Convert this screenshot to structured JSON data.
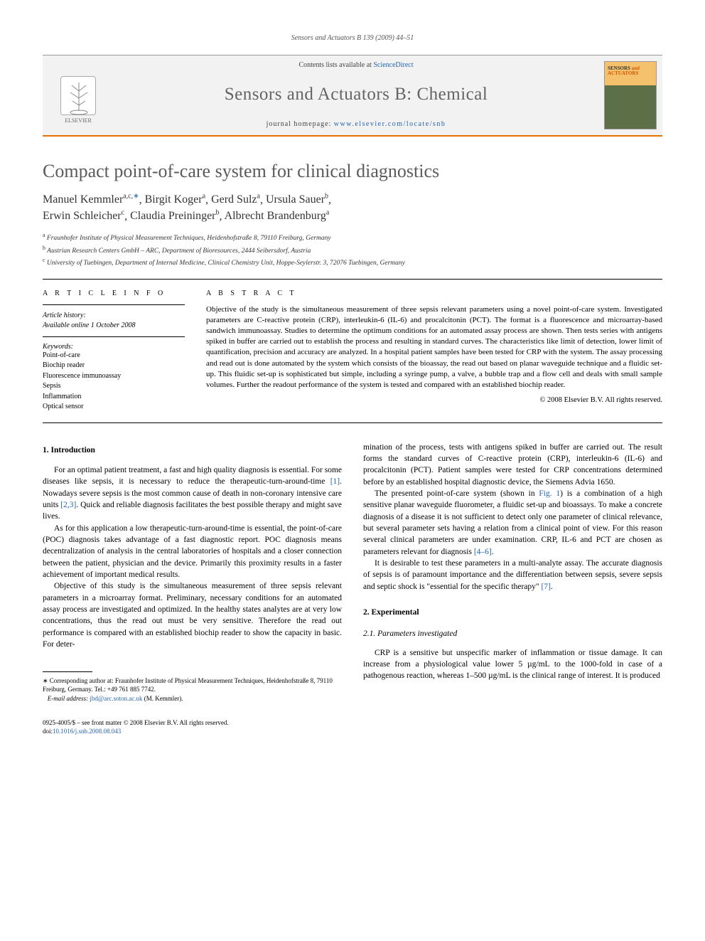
{
  "running_header": "Sensors and Actuators B 139 (2009) 44–51",
  "masthead": {
    "publisher_name": "ELSEVIER",
    "contents_prefix": "Contents lists available at ",
    "contents_link": "ScienceDirect",
    "journal_name": "Sensors and Actuators B: Chemical",
    "homepage_prefix": "journal homepage: ",
    "homepage_url": "www.elsevier.com/locate/snb",
    "cover_line1": "SENSORS",
    "cover_line_and": "and",
    "cover_line2": "ACTUATORS"
  },
  "title": "Compact point-of-care system for clinical diagnostics",
  "authors_html": [
    {
      "name": "Manuel Kemmler",
      "sup": "a,c,",
      "star": true
    },
    {
      "name": "Birgit Koger",
      "sup": "a"
    },
    {
      "name": "Gerd Sulz",
      "sup": "a"
    },
    {
      "name": "Ursula Sauer",
      "sup": "b"
    },
    {
      "name": "Erwin Schleicher",
      "sup": "c"
    },
    {
      "name": "Claudia Preininger",
      "sup": "b"
    },
    {
      "name": "Albrecht Brandenburg",
      "sup": "a"
    }
  ],
  "affiliations": [
    {
      "key": "a",
      "text": "Fraunhofer Institute of Physical Measurement Techniques, Heidenhofstraße 8, 79110 Freiburg, Germany"
    },
    {
      "key": "b",
      "text": "Austrian Research Centers GmbH – ARC, Department of Bioresources, 2444 Seibersdorf, Austria"
    },
    {
      "key": "c",
      "text": "University of Tuebingen, Department of Internal Medicine, Clinical Chemistry Unit, Hoppe-Seylerstr. 3, 72076 Tuebingen, Germany"
    }
  ],
  "info": {
    "heading": "A R T I C L E   I N F O",
    "history_label": "Article history:",
    "history_value": "Available online 1 October 2008",
    "keywords_label": "Keywords:",
    "keywords": [
      "Point-of-care",
      "Biochip reader",
      "Fluorescence immunoassay",
      "Sepsis",
      "Inflammation",
      "Optical sensor"
    ]
  },
  "abstract": {
    "heading": "A B S T R A C T",
    "text": "Objective of the study is the simultaneous measurement of three sepsis relevant parameters using a novel point-of-care system. Investigated parameters are C-reactive protein (CRP), interleukin-6 (IL-6) and procalcitonin (PCT). The format is a fluorescence and microarray-based sandwich immunoassay. Studies to determine the optimum conditions for an automated assay process are shown. Then tests series with antigens spiked in buffer are carried out to establish the process and resulting in standard curves. The characteristics like limit of detection, lower limit of quantification, precision and accuracy are analyzed. In a hospital patient samples have been tested for CRP with the system. The assay processing and read out is done automated by the system which consists of the bioassay, the read out based on planar waveguide technique and a fluidic set-up. This fluidic set-up is sophisticated but simple, including a syringe pump, a valve, a bubble trap and a flow cell and deals with small sample volumes. Further the readout performance of the system is tested and compared with an established biochip reader.",
    "copyright": "© 2008 Elsevier B.V. All rights reserved."
  },
  "sections": {
    "intro_heading": "1.  Introduction",
    "intro_p1": "For an optimal patient treatment, a fast and high quality diagnosis is essential. For some diseases like sepsis, it is necessary to reduce the therapeutic-turn-around-time [1]. Nowadays severe sepsis is the most common cause of death in non-coronary intensive care units [2,3]. Quick and reliable diagnosis facilitates the best possible therapy and might save lives.",
    "intro_p2": "As for this application a low therapeutic-turn-around-time is essential, the point-of-care (POC) diagnosis takes advantage of a fast diagnostic report. POC diagnosis means decentralization of analysis in the central laboratories of hospitals and a closer connection between the patient, physician and the device. Primarily this proximity results in a faster achievement of important medical results.",
    "intro_p3": "Objective of this study is the simultaneous measurement of three sepsis relevant parameters in a microarray format. Preliminary, necessary conditions for an automated assay process are investigated and optimized. In the healthy states analytes are at very low concentrations, thus the read out must be very sensitive. Therefore the read out performance is compared with an established biochip reader to show the capacity in basic. For deter-",
    "intro_p3b": "mination of the process, tests with antigens spiked in buffer are carried out. The result forms the standard curves of C-reactive protein (CRP), interleukin-6 (IL-6) and procalcitonin (PCT). Patient samples were tested for CRP concentrations determined before by an established hospital diagnostic device, the Siemens Advia 1650.",
    "intro_p4": "The presented point-of-care system (shown in Fig. 1) is a combination of a high sensitive planar waveguide fluorometer, a fluidic set-up and bioassays. To make a concrete diagnosis of a disease it is not sufficient to detect only one parameter of clinical relevance, but several parameter sets having a relation from a clinical point of view. For this reason several clinical parameters are under examination. CRP, IL-6 and PCT are chosen as parameters relevant for diagnosis [4–6].",
    "intro_p5": "It is desirable to test these parameters in a multi-analyte assay. The accurate diagnosis of sepsis is of paramount importance and the differentiation between sepsis, severe sepsis and septic shock is \"essential for the specific therapy\" [7].",
    "exp_heading": "2.  Experimental",
    "params_heading": "2.1.  Parameters investigated",
    "exp_p1": "CRP is a sensitive but unspecific marker of inflammation or tissue damage. It can increase from a physiological value lower 5 µg/mL to the 1000-fold in case of a pathogenous reaction, whereas 1–500 µg/mL is the clinical range of interest. It is produced"
  },
  "footnote": {
    "star": "∗",
    "corr_text": "Corresponding author at: Fraunhofer Institute of Physical Measurement Techniques, Heidenhofstraße 8, 79110 Freiburg, Germany. Tel.: +49 761 885 7742.",
    "email_label": "E-mail address: ",
    "email": "jbd@arc.soton.ac.uk",
    "email_who": " (M. Kemmler)."
  },
  "footer": {
    "issn_line": "0925-4005/$ – see front matter © 2008 Elsevier B.V. All rights reserved.",
    "doi_label": "doi:",
    "doi": "10.1016/j.snb.2008.08.043"
  },
  "colors": {
    "accent_orange": "#e57200",
    "link_blue": "#2464b0",
    "grey_text": "#5b5b5b",
    "cover_top": "#f5c16c",
    "cover_bottom": "#5c6f47"
  }
}
